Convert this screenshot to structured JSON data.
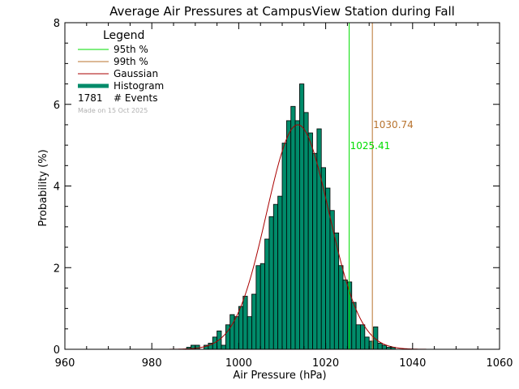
{
  "chart_data": {
    "type": "bar",
    "title": "Average Air Pressures at CampusView Station during Fall",
    "xlabel": "Air Pressure (hPa)",
    "ylabel": "Probability (%)",
    "xlim": [
      960,
      1060
    ],
    "ylim": [
      0,
      8
    ],
    "x_ticks": [
      960,
      980,
      1000,
      1020,
      1040,
      1060
    ],
    "y_ticks": [
      0,
      2,
      4,
      6,
      8
    ],
    "legend": {
      "title": "Legend",
      "placement": "top-left",
      "p95_label": "95th %",
      "p99_label": "99th %",
      "gaussian_label": "Gaussian",
      "histogram_label": "Histogram",
      "events_count": "1781",
      "events_label": "# Events",
      "made_on": "Made on 15 Oct 2025"
    },
    "percentiles": {
      "p95": {
        "value": 1025.41,
        "label": "1025.41",
        "color": "#00dd00"
      },
      "p99": {
        "value": 1030.74,
        "label": "1030.74",
        "color": "#b8732e"
      }
    },
    "gaussian": {
      "mean": 1013.6,
      "sigma": 7.2,
      "peak": 5.5,
      "color": "#aa0000"
    },
    "histogram": {
      "color": "#008b6a",
      "bin_width": 1,
      "bins": [
        {
          "x": 988,
          "y": 0.05
        },
        {
          "x": 989,
          "y": 0.1
        },
        {
          "x": 990,
          "y": 0.1
        },
        {
          "x": 991,
          "y": 0.0
        },
        {
          "x": 992,
          "y": 0.1
        },
        {
          "x": 993,
          "y": 0.15
        },
        {
          "x": 994,
          "y": 0.3
        },
        {
          "x": 995,
          "y": 0.45
        },
        {
          "x": 996,
          "y": 0.1
        },
        {
          "x": 997,
          "y": 0.6
        },
        {
          "x": 998,
          "y": 0.85
        },
        {
          "x": 999,
          "y": 0.8
        },
        {
          "x": 1000,
          "y": 1.05
        },
        {
          "x": 1001,
          "y": 1.3
        },
        {
          "x": 1002,
          "y": 0.8
        },
        {
          "x": 1003,
          "y": 1.35
        },
        {
          "x": 1004,
          "y": 2.05
        },
        {
          "x": 1005,
          "y": 2.1
        },
        {
          "x": 1006,
          "y": 2.7
        },
        {
          "x": 1007,
          "y": 3.25
        },
        {
          "x": 1008,
          "y": 3.55
        },
        {
          "x": 1009,
          "y": 3.75
        },
        {
          "x": 1010,
          "y": 5.05
        },
        {
          "x": 1011,
          "y": 5.6
        },
        {
          "x": 1012,
          "y": 5.95
        },
        {
          "x": 1013,
          "y": 5.6
        },
        {
          "x": 1014,
          "y": 6.5
        },
        {
          "x": 1015,
          "y": 5.8
        },
        {
          "x": 1016,
          "y": 5.3
        },
        {
          "x": 1017,
          "y": 4.8
        },
        {
          "x": 1018,
          "y": 5.4
        },
        {
          "x": 1019,
          "y": 4.45
        },
        {
          "x": 1020,
          "y": 3.95
        },
        {
          "x": 1021,
          "y": 3.4
        },
        {
          "x": 1022,
          "y": 2.85
        },
        {
          "x": 1023,
          "y": 2.05
        },
        {
          "x": 1024,
          "y": 1.7
        },
        {
          "x": 1025,
          "y": 1.65
        },
        {
          "x": 1026,
          "y": 1.15
        },
        {
          "x": 1027,
          "y": 0.6
        },
        {
          "x": 1028,
          "y": 0.6
        },
        {
          "x": 1029,
          "y": 0.3
        },
        {
          "x": 1030,
          "y": 0.2
        },
        {
          "x": 1031,
          "y": 0.55
        },
        {
          "x": 1032,
          "y": 0.15
        },
        {
          "x": 1033,
          "y": 0.1
        },
        {
          "x": 1034,
          "y": 0.05
        },
        {
          "x": 1035,
          "y": 0.05
        }
      ]
    }
  }
}
